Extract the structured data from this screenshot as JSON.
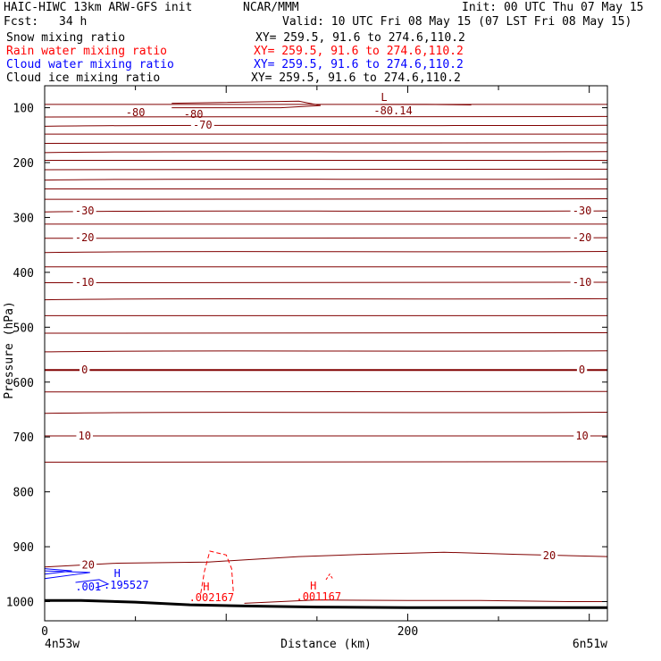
{
  "header": {
    "title": "HAIC-HIWC 13km ARW-GFS init",
    "org": "NCAR/MMM",
    "init": "Init: 00 UTC Thu 07 May 15",
    "fcst_label": "Fcst:",
    "fcst_value": "34 h",
    "valid": "Valid: 10 UTC Fri 08 May 15 (07 LST Fri 08 May 15)"
  },
  "fields": [
    {
      "name": "Snow mixing ratio",
      "xy": "XY= 259.5, 91.6 to 274.6,110.2",
      "color": "#000000"
    },
    {
      "name": "Rain water mixing ratio",
      "xy": "XY= 259.5, 91.6 to 274.6,110.2",
      "color": "#ff0000"
    },
    {
      "name": "Cloud water mixing ratio",
      "xy": "XY= 259.5, 91.6 to 274.6,110.2",
      "color": "#0000ff"
    },
    {
      "name": "Cloud ice mixing ratio",
      "xy": "XY= 259.5, 91.6 to 274.6,110.2",
      "color": "#000000"
    }
  ],
  "chart_data": {
    "type": "line",
    "xlabel": "Distance (km)",
    "ylabel": "Pressure (hPa)",
    "x_ticks": [
      0,
      200
    ],
    "y_ticks": [
      100,
      200,
      300,
      400,
      500,
      600,
      700,
      800,
      900,
      1000
    ],
    "xlim": [
      0,
      310
    ],
    "ylim": [
      1035,
      60
    ],
    "left_end_label": "4n53w",
    "right_end_label": "6n51w",
    "colors": {
      "temperature": "#800000",
      "rain": "#ff0000",
      "cloud": "#0000ff",
      "terrain": "#000000"
    },
    "temperature_contours": [
      {
        "y": 94,
        "label": "-80"
      },
      {
        "y": 116
      },
      {
        "y": 132,
        "label": "-70"
      },
      {
        "y": 148
      },
      {
        "y": 164
      },
      {
        "y": 180
      },
      {
        "y": 196
      },
      {
        "y": 212
      },
      {
        "y": 230
      },
      {
        "y": 248
      },
      {
        "y": 266
      },
      {
        "y": 288,
        "label": "-30"
      },
      {
        "y": 312
      },
      {
        "y": 337,
        "label": "-20"
      },
      {
        "y": 362
      },
      {
        "y": 390
      },
      {
        "y": 418,
        "label": "-10"
      },
      {
        "y": 448
      },
      {
        "y": 479
      },
      {
        "y": 510
      },
      {
        "y": 543
      },
      {
        "y": 578,
        "label": "0",
        "bold": true
      },
      {
        "y": 617
      },
      {
        "y": 655
      },
      {
        "y": 698,
        "label": "10"
      },
      {
        "y": 745
      }
    ],
    "temperature_contour_20": {
      "label": "20",
      "points": [
        [
          0,
          937
        ],
        [
          40,
          930
        ],
        [
          90,
          928
        ],
        [
          140,
          918
        ],
        [
          175,
          914
        ],
        [
          220,
          910
        ],
        [
          260,
          914
        ],
        [
          310,
          918
        ]
      ]
    },
    "temperature_contour_30": {
      "points": [
        [
          110,
          1003
        ],
        [
          150,
          997
        ],
        [
          200,
          998
        ],
        [
          240,
          998
        ],
        [
          290,
          1000
        ],
        [
          310,
          1000
        ]
      ]
    },
    "temperature_low": {
      "symbol": "L",
      "value": "-80.14",
      "x": 187,
      "y": 88
    },
    "rain_maxima": [
      {
        "symbol": "H",
        "value": ".002167",
        "x": 89,
        "y": 980
      },
      {
        "symbol": "H",
        "value": ".001167",
        "x": 148,
        "y": 978
      }
    ],
    "cloud_max": {
      "symbol": "H",
      "value": ".195527",
      "x": 40,
      "y": 955
    },
    "cloud_contour_label": ".001",
    "terrain": [
      [
        0,
        998
      ],
      [
        20,
        998
      ],
      [
        50,
        1001
      ],
      [
        80,
        1006
      ],
      [
        110,
        1008
      ],
      [
        150,
        1010
      ],
      [
        200,
        1011
      ],
      [
        260,
        1011
      ],
      [
        310,
        1011
      ]
    ]
  }
}
